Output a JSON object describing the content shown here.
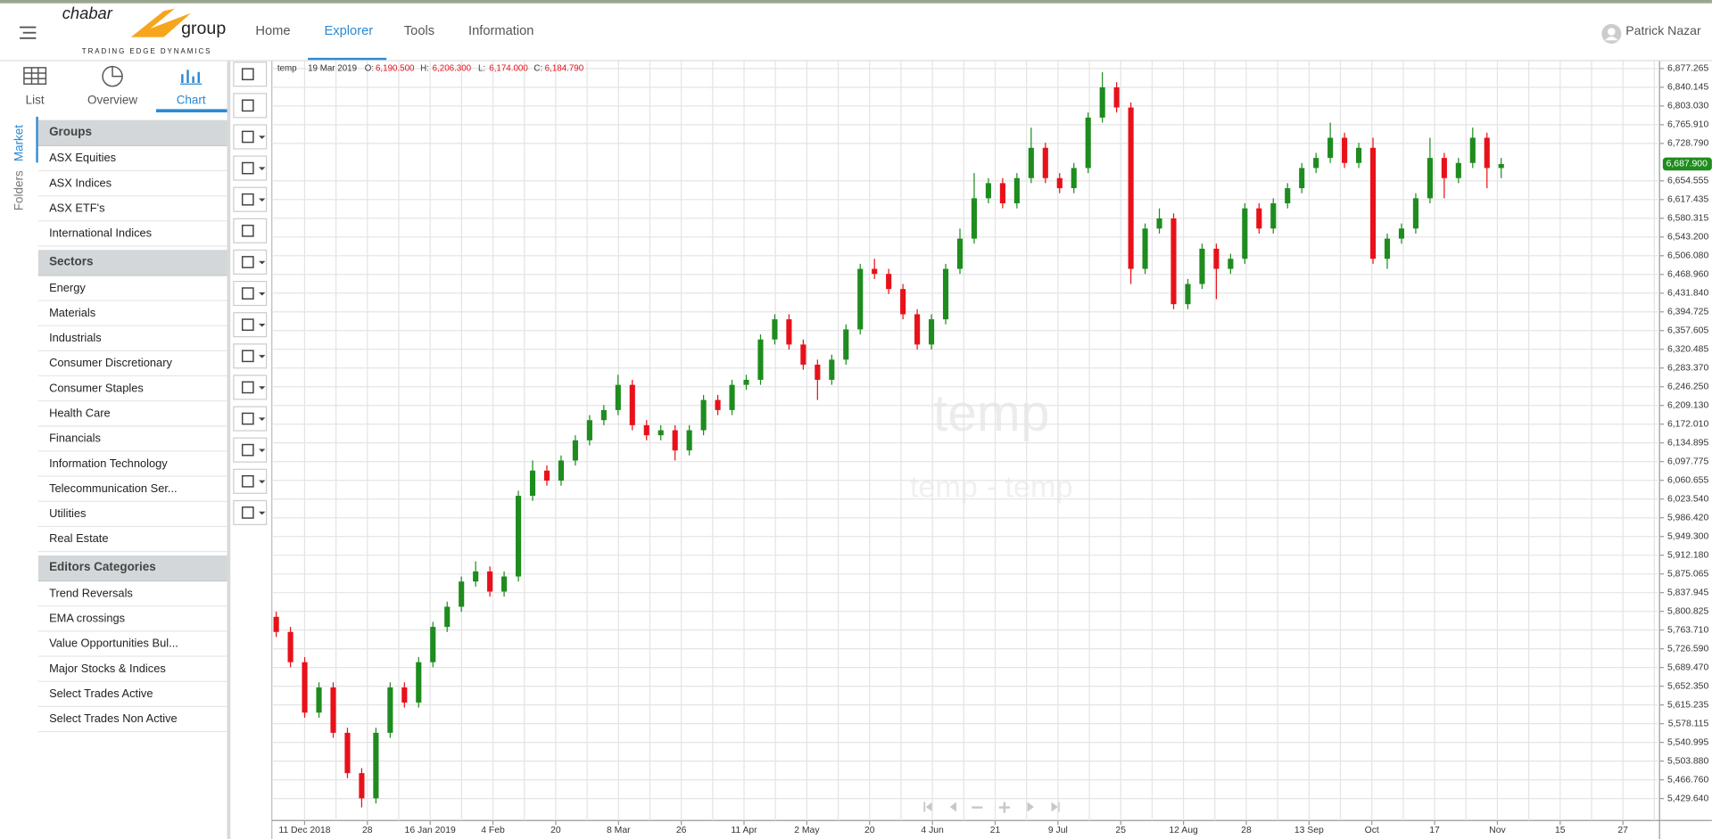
{
  "header": {
    "logo_main": "chabar",
    "logo_group": "group",
    "logo_tagline": "TRADING EDGE DYNAMICS",
    "nav": [
      "Home",
      "Explorer",
      "Tools",
      "Information"
    ],
    "user": "Patrick Nazar"
  },
  "sidebar": {
    "views": [
      "List",
      "Overview",
      "Chart"
    ],
    "tabs": [
      "Market",
      "Folders"
    ],
    "sections": [
      {
        "title": "Groups",
        "items": [
          "ASX Equities",
          "ASX Indices",
          "ASX ETF's",
          "International Indices"
        ]
      },
      {
        "title": "Sectors",
        "items": [
          "Energy",
          "Materials",
          "Industrials",
          "Consumer Discretionary",
          "Consumer Staples",
          "Health Care",
          "Financials",
          "Information Technology",
          "Telecommunication Ser...",
          "Utilities",
          "Real Estate"
        ]
      },
      {
        "title": "Editors Categories",
        "items": [
          "Trend Reversals",
          "EMA crossings",
          "Value Opportunities Bul...",
          "Major Stocks & Indices",
          "Select Trades Active",
          "Select Trades Non Active"
        ]
      }
    ]
  },
  "chart_data": {
    "type": "candlestick",
    "symbol": "temp",
    "legend": {
      "date": "19 Mar 2019",
      "open_label": "O:",
      "open": {
        "value": 6190.5,
        "label": "6,190.500"
      },
      "high_label": "H:",
      "high": {
        "value": 6206.3,
        "label": "6,206.300"
      },
      "low_label": "L:",
      "low": {
        "value": 6174.0,
        "label": "6,174.000"
      },
      "close_label": "C:",
      "close": {
        "value": 6184.79,
        "label": "6,184.790"
      }
    },
    "watermark": "temp",
    "watermark_sub": "temp - temp",
    "up_color": "#1e8c1e",
    "down_color": "#e8111a",
    "grid": true,
    "x_labels": [
      "11 Dec 2018",
      "28",
      "16 Jan 2019",
      "4 Feb",
      "20",
      "8 Mar",
      "26",
      "11 Apr",
      "2 May",
      "20",
      "4 Jun",
      "21",
      "9 Jul",
      "25",
      "12 Aug",
      "28",
      "13 Sep",
      "Oct",
      "17",
      "Nov",
      "15",
      "27"
    ],
    "ylim": [
      5386,
      6892
    ],
    "yticks": [
      {
        "value": 6877.265,
        "label": "6,877.265"
      },
      {
        "value": 6840.145,
        "label": "6,840.145"
      },
      {
        "value": 6803.03,
        "label": "6,803.030"
      },
      {
        "value": 6765.91,
        "label": "6,765.910"
      },
      {
        "value": 6728.79,
        "label": "6,728.790"
      },
      {
        "value": 6654.555,
        "label": "6,654.555"
      },
      {
        "value": 6617.435,
        "label": "6,617.435"
      },
      {
        "value": 6580.315,
        "label": "6,580.315"
      },
      {
        "value": 6543.2,
        "label": "6,543.200"
      },
      {
        "value": 6506.08,
        "label": "6,506.080"
      },
      {
        "value": 6468.96,
        "label": "6,468.960"
      },
      {
        "value": 6431.84,
        "label": "6,431.840"
      },
      {
        "value": 6394.725,
        "label": "6,394.725"
      },
      {
        "value": 6357.605,
        "label": "6,357.605"
      },
      {
        "value": 6320.485,
        "label": "6,320.485"
      },
      {
        "value": 6283.37,
        "label": "6,283.370"
      },
      {
        "value": 6246.25,
        "label": "6,246.250"
      },
      {
        "value": 6209.13,
        "label": "6,209.130"
      },
      {
        "value": 6172.01,
        "label": "6,172.010"
      },
      {
        "value": 6134.895,
        "label": "6,134.895"
      },
      {
        "value": 6097.775,
        "label": "6,097.775"
      },
      {
        "value": 6060.655,
        "label": "6,060.655"
      },
      {
        "value": 6023.54,
        "label": "6,023.540"
      },
      {
        "value": 5986.42,
        "label": "5,986.420"
      },
      {
        "value": 5949.3,
        "label": "5,949.300"
      },
      {
        "value": 5912.18,
        "label": "5,912.180"
      },
      {
        "value": 5875.065,
        "label": "5,875.065"
      },
      {
        "value": 5837.945,
        "label": "5,837.945"
      },
      {
        "value": 5800.825,
        "label": "5,800.825"
      },
      {
        "value": 5763.71,
        "label": "5,763.710"
      },
      {
        "value": 5726.59,
        "label": "5,726.590"
      },
      {
        "value": 5689.47,
        "label": "5,689.470"
      },
      {
        "value": 5652.35,
        "label": "5,652.350"
      },
      {
        "value": 5615.235,
        "label": "5,615.235"
      },
      {
        "value": 5578.115,
        "label": "5,578.115"
      },
      {
        "value": 5540.995,
        "label": "5,540.995"
      },
      {
        "value": 5503.88,
        "label": "5,503.880"
      },
      {
        "value": 5466.76,
        "label": "5,466.760"
      },
      {
        "value": 5429.64,
        "label": "5,429.640"
      }
    ],
    "last_price": {
      "value": 6687.9,
      "label": "6,687.900"
    },
    "ohlc": [
      [
        5790,
        5800,
        5750,
        5760
      ],
      [
        5760,
        5770,
        5690,
        5700
      ],
      [
        5700,
        5710,
        5590,
        5600
      ],
      [
        5600,
        5660,
        5590,
        5650
      ],
      [
        5650,
        5660,
        5550,
        5560
      ],
      [
        5560,
        5570,
        5470,
        5480
      ],
      [
        5480,
        5490,
        5412,
        5430
      ],
      [
        5430,
        5570,
        5420,
        5560
      ],
      [
        5560,
        5660,
        5550,
        5650
      ],
      [
        5650,
        5660,
        5610,
        5620
      ],
      [
        5620,
        5710,
        5610,
        5700
      ],
      [
        5700,
        5780,
        5690,
        5770
      ],
      [
        5770,
        5820,
        5760,
        5810
      ],
      [
        5810,
        5870,
        5800,
        5860
      ],
      [
        5860,
        5900,
        5850,
        5880
      ],
      [
        5880,
        5890,
        5830,
        5840
      ],
      [
        5840,
        5880,
        5830,
        5870
      ],
      [
        5870,
        6040,
        5860,
        6030
      ],
      [
        6030,
        6100,
        6020,
        6080
      ],
      [
        6080,
        6090,
        6050,
        6060
      ],
      [
        6060,
        6110,
        6050,
        6100
      ],
      [
        6100,
        6150,
        6090,
        6140
      ],
      [
        6140,
        6190,
        6130,
        6180
      ],
      [
        6180,
        6210,
        6170,
        6200
      ],
      [
        6200,
        6270,
        6190,
        6250
      ],
      [
        6250,
        6260,
        6160,
        6170
      ],
      [
        6170,
        6180,
        6140,
        6150
      ],
      [
        6150,
        6170,
        6140,
        6160
      ],
      [
        6160,
        6170,
        6100,
        6120
      ],
      [
        6120,
        6170,
        6110,
        6160
      ],
      [
        6160,
        6230,
        6150,
        6220
      ],
      [
        6220,
        6230,
        6190,
        6200
      ],
      [
        6200,
        6260,
        6190,
        6250
      ],
      [
        6250,
        6270,
        6240,
        6260
      ],
      [
        6260,
        6350,
        6250,
        6340
      ],
      [
        6340,
        6390,
        6330,
        6380
      ],
      [
        6380,
        6390,
        6320,
        6330
      ],
      [
        6330,
        6340,
        6280,
        6290
      ],
      [
        6290,
        6300,
        6220,
        6260
      ],
      [
        6260,
        6310,
        6250,
        6300
      ],
      [
        6300,
        6370,
        6290,
        6360
      ],
      [
        6360,
        6490,
        6350,
        6480
      ],
      [
        6480,
        6500,
        6460,
        6470
      ],
      [
        6470,
        6480,
        6430,
        6440
      ],
      [
        6440,
        6450,
        6380,
        6390
      ],
      [
        6390,
        6400,
        6320,
        6330
      ],
      [
        6330,
        6390,
        6320,
        6380
      ],
      [
        6380,
        6490,
        6370,
        6480
      ],
      [
        6480,
        6560,
        6470,
        6540
      ],
      [
        6540,
        6670,
        6530,
        6620
      ],
      [
        6620,
        6660,
        6610,
        6650
      ],
      [
        6650,
        6660,
        6600,
        6610
      ],
      [
        6610,
        6670,
        6600,
        6660
      ],
      [
        6660,
        6760,
        6650,
        6720
      ],
      [
        6720,
        6730,
        6650,
        6660
      ],
      [
        6660,
        6670,
        6630,
        6640
      ],
      [
        6640,
        6690,
        6630,
        6680
      ],
      [
        6680,
        6790,
        6670,
        6780
      ],
      [
        6780,
        6870,
        6770,
        6840
      ],
      [
        6840,
        6850,
        6790,
        6800
      ],
      [
        6800,
        6810,
        6450,
        6480
      ],
      [
        6480,
        6570,
        6470,
        6560
      ],
      [
        6560,
        6600,
        6550,
        6580
      ],
      [
        6580,
        6590,
        6400,
        6410
      ],
      [
        6410,
        6460,
        6400,
        6450
      ],
      [
        6450,
        6530,
        6440,
        6520
      ],
      [
        6520,
        6530,
        6420,
        6480
      ],
      [
        6480,
        6510,
        6470,
        6500
      ],
      [
        6500,
        6610,
        6490,
        6600
      ],
      [
        6600,
        6610,
        6550,
        6560
      ],
      [
        6560,
        6620,
        6550,
        6610
      ],
      [
        6610,
        6650,
        6600,
        6640
      ],
      [
        6640,
        6690,
        6630,
        6680
      ],
      [
        6680,
        6710,
        6670,
        6700
      ],
      [
        6700,
        6770,
        6690,
        6740
      ],
      [
        6740,
        6750,
        6680,
        6690
      ],
      [
        6690,
        6730,
        6680,
        6720
      ],
      [
        6720,
        6740,
        6490,
        6500
      ],
      [
        6500,
        6550,
        6480,
        6540
      ],
      [
        6540,
        6570,
        6530,
        6560
      ],
      [
        6560,
        6630,
        6550,
        6620
      ],
      [
        6620,
        6740,
        6610,
        6700
      ],
      [
        6700,
        6710,
        6620,
        6660
      ],
      [
        6660,
        6700,
        6650,
        6690
      ],
      [
        6690,
        6760,
        6680,
        6740
      ],
      [
        6740,
        6750,
        6640,
        6680
      ],
      [
        6680,
        6700,
        6660,
        6687.9
      ]
    ]
  }
}
